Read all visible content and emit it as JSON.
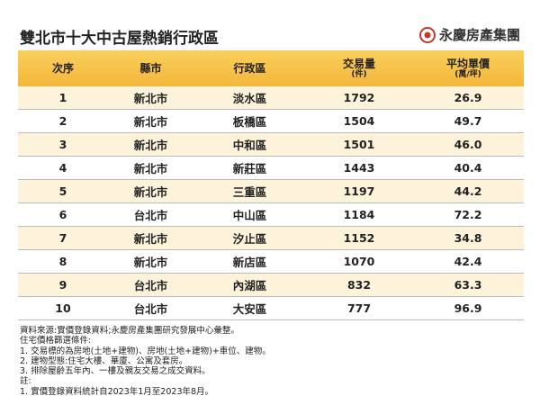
{
  "header": {
    "title": "雙北市十大中古屋熱銷行政區",
    "logo": "永慶房產集團"
  },
  "table": {
    "columns": [
      {
        "label": "次序"
      },
      {
        "label": "縣市"
      },
      {
        "label": "行政區"
      },
      {
        "label": "交易量",
        "sub": "(件)"
      },
      {
        "label": "平均單價",
        "sub": "(萬/坪)"
      }
    ],
    "rows": [
      [
        "1",
        "新北市",
        "淡水區",
        "1792",
        "26.9"
      ],
      [
        "2",
        "新北市",
        "板橋區",
        "1504",
        "49.7"
      ],
      [
        "3",
        "新北市",
        "中和區",
        "1501",
        "46.0"
      ],
      [
        "4",
        "新北市",
        "新莊區",
        "1443",
        "40.4"
      ],
      [
        "5",
        "新北市",
        "三重區",
        "1197",
        "44.2"
      ],
      [
        "6",
        "台北市",
        "中山區",
        "1184",
        "72.2"
      ],
      [
        "7",
        "新北市",
        "汐止區",
        "1152",
        "34.8"
      ],
      [
        "8",
        "新北市",
        "新店區",
        "1070",
        "42.4"
      ],
      [
        "9",
        "台北市",
        "內湖區",
        "832",
        "63.3"
      ],
      [
        "10",
        "台北市",
        "大安區",
        "777",
        "96.9"
      ]
    ]
  },
  "notes": [
    "資料來源:實價登錄資料;永慶房產集團研究發展中心彙整。",
    "住宅價格篩選條件:",
    "1. 交易標的為房地(土地+建物)、房地(土地+建物)+車位、建物。",
    "2. 建物型態:住宅大樓、華廈、公寓及套房。",
    "3. 排除屋齡五年內、一樓及親友交易之成交資料。",
    "註:",
    "1. 實價登錄資料統計自2023年1月至2023年8月。"
  ]
}
